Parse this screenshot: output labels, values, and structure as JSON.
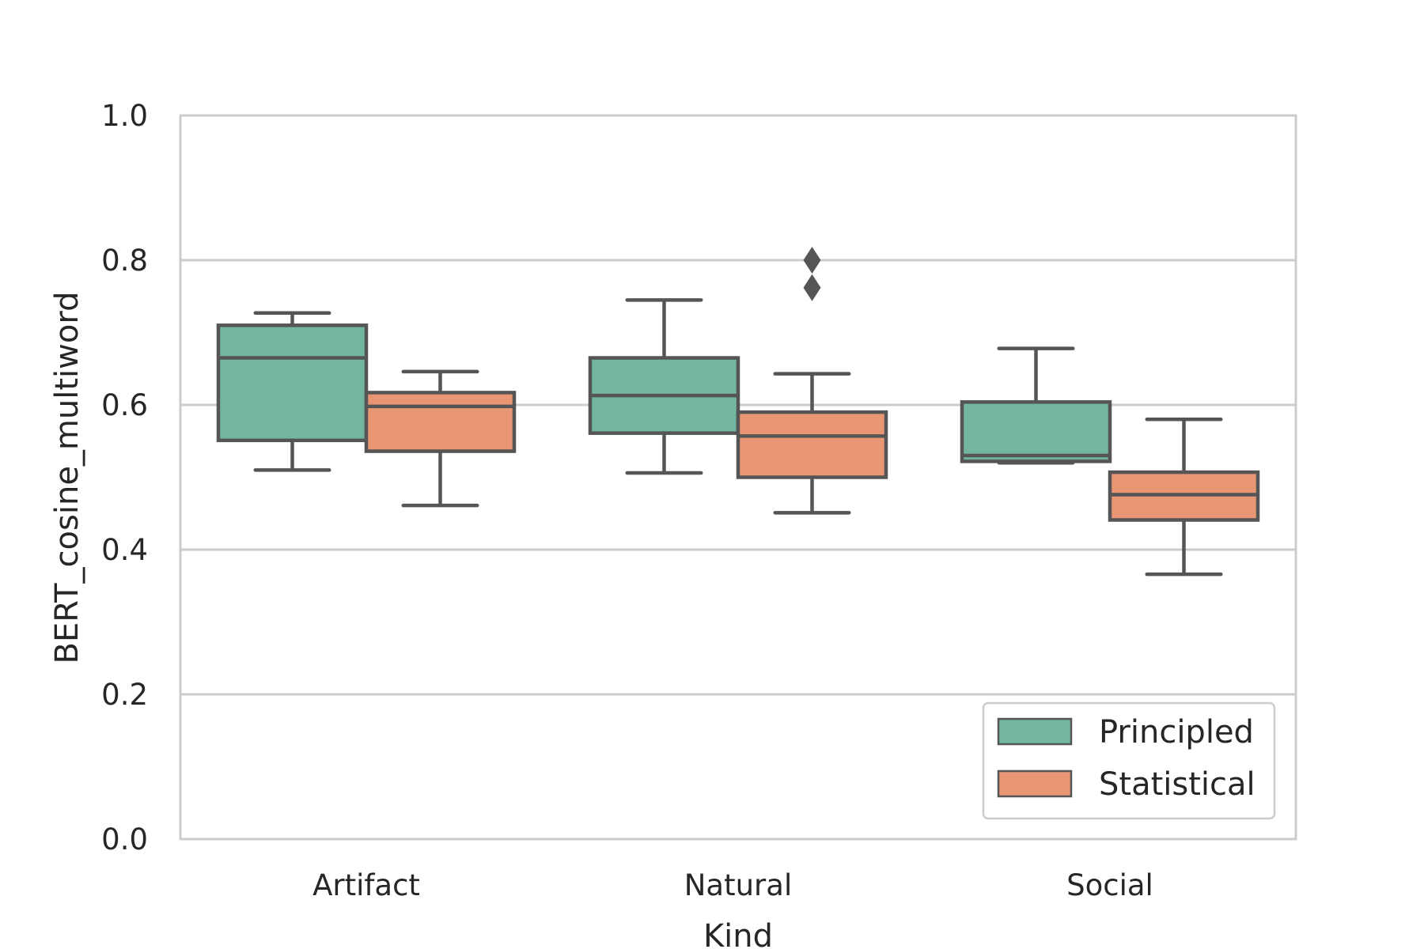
{
  "chart_data": {
    "type": "box",
    "title": "",
    "xlabel": "Kind",
    "ylabel": "BERT_cosine_multiword",
    "ylim": [
      0.0,
      1.0
    ],
    "yticks": [
      0.0,
      0.2,
      0.4,
      0.6,
      0.8,
      1.0
    ],
    "ytick_labels": [
      "0.0",
      "0.2",
      "0.4",
      "0.6",
      "0.8",
      "1.0"
    ],
    "categories": [
      "Artifact",
      "Natural",
      "Social"
    ],
    "grid": "horizontal",
    "legend_position": "lower-right",
    "series": [
      {
        "name": "Principled",
        "color": "#72b6a1",
        "boxes": [
          {
            "whisker_low": 0.51,
            "q1": 0.551,
            "median": 0.665,
            "q3": 0.71,
            "whisker_high": 0.727,
            "outliers": []
          },
          {
            "whisker_low": 0.506,
            "q1": 0.561,
            "median": 0.613,
            "q3": 0.665,
            "whisker_high": 0.745,
            "outliers": []
          },
          {
            "whisker_low": 0.52,
            "q1": 0.522,
            "median": 0.53,
            "q3": 0.604,
            "whisker_high": 0.678,
            "outliers": []
          }
        ]
      },
      {
        "name": "Statistical",
        "color": "#e99675",
        "boxes": [
          {
            "whisker_low": 0.461,
            "q1": 0.536,
            "median": 0.598,
            "q3": 0.617,
            "whisker_high": 0.646,
            "outliers": []
          },
          {
            "whisker_low": 0.451,
            "q1": 0.5,
            "median": 0.557,
            "q3": 0.59,
            "whisker_high": 0.643,
            "outliers": [
              0.762,
              0.8
            ]
          },
          {
            "whisker_low": 0.366,
            "q1": 0.441,
            "median": 0.476,
            "q3": 0.507,
            "whisker_high": 0.58,
            "outliers": []
          }
        ]
      }
    ]
  }
}
